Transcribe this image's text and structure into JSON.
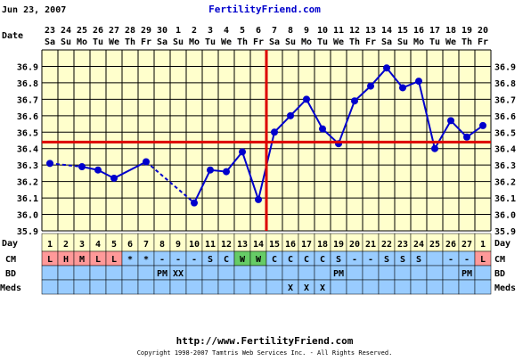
{
  "header": {
    "date": "Jun 23, 2007",
    "site": "FertilityFriend.com"
  },
  "row_labels": {
    "date": "Date",
    "day": "Day",
    "cm": "CM",
    "bd": "BD",
    "meds": "Meds"
  },
  "footer": {
    "url": "http://www.FertilityFriend.com",
    "copyright": "Copyright 1998-2007 Tamtris Web Services Inc. - All Rights Reserved."
  },
  "chart_data": {
    "type": "line",
    "dates": [
      "23",
      "24",
      "25",
      "26",
      "27",
      "28",
      "29",
      "30",
      "1",
      "2",
      "3",
      "4",
      "5",
      "6",
      "7",
      "8",
      "9",
      "10",
      "11",
      "12",
      "13",
      "14",
      "15",
      "16",
      "17",
      "18",
      "19",
      "20"
    ],
    "weekdays": [
      "Sa",
      "Su",
      "Mo",
      "Tu",
      "We",
      "Th",
      "Fr",
      "Sa",
      "Su",
      "Mo",
      "Tu",
      "We",
      "Th",
      "Fr",
      "Sa",
      "Su",
      "Mo",
      "Tu",
      "We",
      "Th",
      "Fr",
      "Sa",
      "Su",
      "Mo",
      "Tu",
      "We",
      "Th",
      "Fr"
    ],
    "cycle_days": [
      "1",
      "2",
      "3",
      "4",
      "5",
      "6",
      "7",
      "8",
      "9",
      "10",
      "11",
      "12",
      "13",
      "14",
      "15",
      "16",
      "17",
      "18",
      "19",
      "20",
      "21",
      "22",
      "23",
      "24",
      "25",
      "26",
      "27",
      "1"
    ],
    "temps": [
      36.31,
      null,
      36.29,
      36.27,
      36.22,
      null,
      36.32,
      null,
      null,
      36.07,
      36.27,
      36.26,
      36.38,
      36.09,
      36.5,
      36.6,
      36.7,
      36.52,
      36.43,
      36.69,
      36.78,
      36.89,
      36.77,
      36.81,
      36.4,
      36.57,
      36.47,
      36.54
    ],
    "dashed_segments": [
      [
        0,
        2
      ],
      [
        6,
        9
      ]
    ],
    "ylim": [
      35.9,
      37.0
    ],
    "yticks": [
      "35.9",
      "36.0",
      "36.1",
      "36.2",
      "36.3",
      "36.4",
      "36.5",
      "36.6",
      "36.7",
      "36.8",
      "36.9"
    ],
    "coverline": 36.44,
    "ovulation_day_index": 13,
    "cm": [
      "L",
      "H",
      "M",
      "L",
      "L",
      "*",
      "*",
      "-",
      "-",
      "-",
      "S",
      "C",
      "W",
      "W",
      "C",
      "C",
      "C",
      "C",
      "S",
      "-",
      "-",
      "S",
      "S",
      "S",
      "",
      "-",
      "-",
      "L"
    ],
    "bd": [
      "",
      "",
      "",
      "",
      "",
      "",
      "",
      "PM",
      "XX",
      "",
      "",
      "",
      "",
      "",
      "",
      "",
      "",
      "",
      "PM",
      "",
      "",
      "",
      "",
      "",
      "",
      "",
      "PM",
      ""
    ],
    "meds": [
      "",
      "",
      "",
      "",
      "",
      "",
      "",
      "",
      "",
      "",
      "",
      "",
      "",
      "",
      "",
      "X",
      "X",
      "X",
      "",
      "",
      "",
      "",
      "",
      "",
      "",
      "",
      "",
      ""
    ],
    "colors": {
      "line": "#0000cc",
      "coverline": "#dd0000",
      "grid": "#000000",
      "plot_bg": "#ffffcc",
      "row_bg": "#99ccff",
      "day_bg": "#ffffcc",
      "cm_red": "#ff9999",
      "cm_green": "#66cc66"
    }
  }
}
